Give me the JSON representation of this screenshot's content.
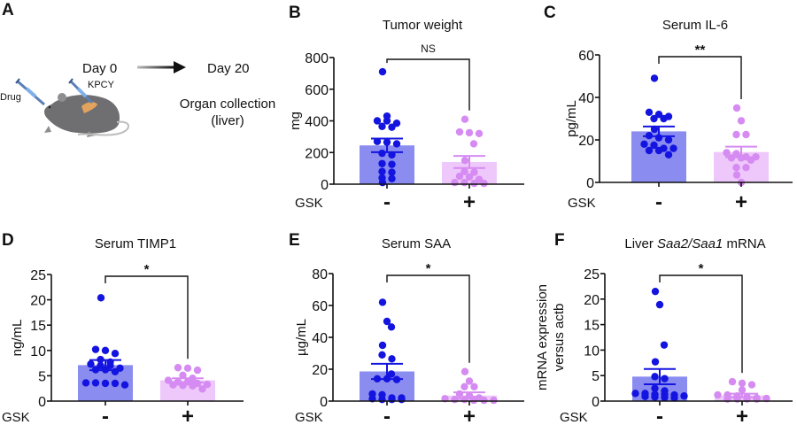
{
  "panel_a": {
    "letter": "A",
    "day0": "Day 0",
    "day20": "Day 20",
    "kpcy": "KPCY",
    "drug": "Drug",
    "organ_line1": "Organ collection",
    "organ_line2": "(liver)"
  },
  "colors": {
    "minus_bar": "#8a8cf0",
    "minus_dot": "#1414e0",
    "plus_bar": "#efc8fb",
    "plus_dot": "#d58bf1",
    "axis": "#111111"
  },
  "chart_data": [
    {
      "panel": "B",
      "type": "bar",
      "title": "Tumor weight",
      "ylabel": [
        "mg"
      ],
      "xlabel": "GSK",
      "categories": [
        "-",
        "+"
      ],
      "ylim": [
        0,
        800
      ],
      "yticks": [
        0,
        200,
        400,
        600,
        800
      ],
      "grid": false,
      "means": [
        245,
        140
      ],
      "sem": [
        43,
        38
      ],
      "points": [
        [
          710,
          430,
          400,
          400,
          385,
          365,
          360,
          270,
          265,
          255,
          195,
          185,
          130,
          125,
          80,
          75,
          40,
          35,
          10
        ],
        [
          410,
          330,
          325,
          320,
          255,
          150,
          80,
          75,
          50,
          45,
          30,
          10,
          10,
          5,
          5
        ]
      ],
      "significance": "NS"
    },
    {
      "panel": "C",
      "type": "bar",
      "title": "Serum IL-6",
      "ylabel": [
        "pg/mL"
      ],
      "xlabel": "GSK",
      "categories": [
        "-",
        "+"
      ],
      "ylim": [
        0,
        60
      ],
      "yticks": [
        0,
        20,
        40,
        60
      ],
      "grid": false,
      "means": [
        24,
        14.3
      ],
      "sem": [
        2.3,
        2.5
      ],
      "points": [
        [
          49,
          33,
          32,
          31,
          30,
          30,
          25,
          22,
          21,
          20,
          18,
          17.5,
          16,
          16,
          15,
          15,
          13
        ],
        [
          35,
          29,
          22.5,
          22.5,
          14,
          13.5,
          12,
          12,
          11.5,
          11.5,
          10.5,
          7,
          7,
          3.5,
          0
        ]
      ],
      "significance": "**"
    },
    {
      "panel": "D",
      "type": "bar",
      "title": "Serum TIMP1",
      "ylabel": [
        "ng/mL"
      ],
      "xlabel": "GSK",
      "categories": [
        "-",
        "+"
      ],
      "ylim": [
        0,
        25
      ],
      "yticks": [
        0,
        5,
        10,
        15,
        20,
        25
      ],
      "grid": false,
      "means": [
        7.1,
        4.1
      ],
      "sem": [
        1.0,
        0.4
      ],
      "points": [
        [
          20.4,
          10.2,
          10,
          9.4,
          8.2,
          7.7,
          7.3,
          7,
          7,
          6.5,
          6.2,
          6.2,
          5.8,
          3.6,
          3.6,
          3.5,
          3.5,
          3.2
        ],
        [
          6.6,
          6.5,
          6.1,
          5.1,
          4.5,
          4.1,
          3.8,
          3.8,
          3.5,
          3.3,
          3.2,
          3.1,
          3.0,
          2.4
        ]
      ],
      "significance": "*"
    },
    {
      "panel": "E",
      "type": "bar",
      "title": "Serum SAA",
      "ylabel": [
        "µg/mL"
      ],
      "xlabel": "GSK",
      "categories": [
        "-",
        "+"
      ],
      "ylim": [
        0,
        80
      ],
      "yticks": [
        0,
        20,
        40,
        60,
        80
      ],
      "grid": false,
      "means": [
        18.6,
        3.5
      ],
      "sem": [
        4.8,
        2.0
      ],
      "points": [
        [
          62,
          50,
          46.5,
          35,
          29,
          26.5,
          17,
          14,
          14,
          13.5,
          4.5,
          4,
          2,
          2,
          1.5,
          1,
          1,
          1
        ],
        [
          18.5,
          12.5,
          9,
          9,
          4.5,
          3.5,
          2,
          1.5,
          1,
          1,
          1,
          0.5,
          0.5,
          0.5
        ]
      ],
      "significance": "*"
    },
    {
      "panel": "F",
      "type": "bar",
      "title": "Liver Saa2/Saa1 mRNA",
      "title_parts": [
        {
          "text": "Liver ",
          "italic": false
        },
        {
          "text": "Saa2/Saa1",
          "italic": true
        },
        {
          "text": " mRNA",
          "italic": false
        }
      ],
      "ylabel": [
        "mRNA expression",
        "versus actb"
      ],
      "xlabel": "GSK",
      "categories": [
        "-",
        "+"
      ],
      "ylim": [
        0,
        25
      ],
      "yticks": [
        0,
        5,
        10,
        15,
        20,
        25
      ],
      "grid": false,
      "means": [
        4.8,
        1.1
      ],
      "sem": [
        1.5,
        0.35
      ],
      "points": [
        [
          21.5,
          18.9,
          11,
          7.7,
          4.8,
          4.4,
          2.5,
          2,
          1.5,
          1.5,
          1.3,
          1.3,
          1.2,
          1.0,
          0.9,
          0.8,
          0.7,
          0.6
        ],
        [
          3.8,
          3.5,
          3.2,
          2.2,
          1.2,
          1.2,
          1,
          0.8,
          0.6,
          0.5,
          0.4,
          0.4,
          0.4,
          0.4
        ]
      ],
      "significance": "*"
    }
  ]
}
